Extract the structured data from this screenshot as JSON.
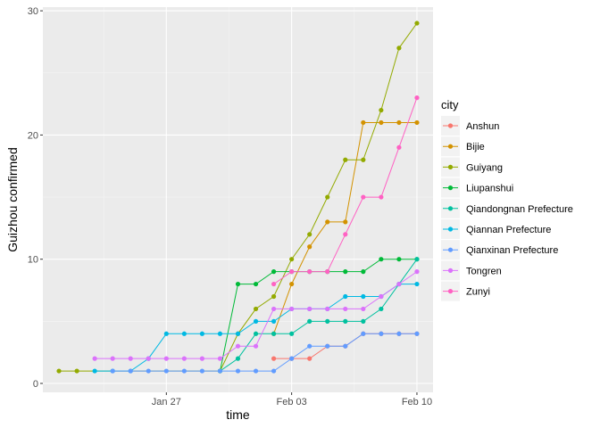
{
  "chart_data": {
    "type": "line",
    "xlabel": "time",
    "ylabel": "Guizhou  confirmed",
    "ylim": [
      0,
      30
    ],
    "yticks": [
      0,
      10,
      20,
      30
    ],
    "xticks": [
      {
        "day": 27,
        "label": "Jan 27"
      },
      {
        "day": 34,
        "label": "Feb 03"
      },
      {
        "day": 41,
        "label": "Feb 10"
      }
    ],
    "x_note_units": "day of year 2020 (Jan 1 = 1)",
    "grid": true,
    "legend_position": "right",
    "legend_title": "city",
    "series": [
      {
        "name": "Anshun",
        "color": "#F8766D",
        "days": [
          33,
          34,
          35,
          36,
          37,
          38,
          39,
          40,
          41
        ],
        "values": [
          2,
          2,
          2,
          3,
          3,
          4,
          4,
          4,
          4
        ]
      },
      {
        "name": "Bijie",
        "color": "#D39200",
        "days": [
          33,
          34,
          35,
          36,
          37,
          38,
          39,
          40,
          41
        ],
        "values": [
          4,
          8,
          11,
          13,
          13,
          21,
          21,
          21,
          21
        ]
      },
      {
        "name": "Guiyang",
        "color": "#93AA00",
        "days": [
          21,
          22,
          30,
          31,
          32,
          33,
          34,
          35,
          36,
          37,
          38,
          39,
          40,
          41
        ],
        "values": [
          1,
          1,
          1,
          4,
          6,
          7,
          10,
          12,
          15,
          18,
          18,
          22,
          27,
          29
        ]
      },
      {
        "name": "Liupanshui",
        "color": "#00BA38",
        "days": [
          30,
          31,
          32,
          33,
          34,
          35,
          36,
          37,
          38,
          39,
          40,
          41
        ],
        "values": [
          1,
          8,
          8,
          9,
          9,
          9,
          9,
          9,
          9,
          10,
          10,
          10
        ]
      },
      {
        "name": "Qiandongnan Prefecture",
        "color": "#00C19F",
        "days": [
          30,
          31,
          32,
          33,
          34,
          35,
          36,
          37,
          38,
          39,
          40,
          41
        ],
        "values": [
          1,
          2,
          4,
          4,
          4,
          5,
          5,
          5,
          5,
          6,
          8,
          10
        ]
      },
      {
        "name": "Qiannan Prefecture",
        "color": "#00B9E3",
        "days": [
          23,
          24,
          25,
          26,
          27,
          28,
          29,
          30,
          31,
          32,
          33,
          34,
          35,
          36,
          37,
          38,
          39,
          40,
          41
        ],
        "values": [
          1,
          1,
          1,
          2,
          4,
          4,
          4,
          4,
          4,
          5,
          5,
          6,
          6,
          6,
          7,
          7,
          7,
          8,
          8
        ]
      },
      {
        "name": "Qianxinan Prefecture",
        "color": "#619CFF",
        "days": [
          24,
          25,
          26,
          27,
          28,
          29,
          30,
          31,
          32,
          33,
          34,
          35,
          36,
          37,
          38,
          39,
          40,
          41
        ],
        "values": [
          1,
          1,
          1,
          1,
          1,
          1,
          1,
          1,
          1,
          1,
          2,
          3,
          3,
          3,
          4,
          4,
          4,
          4
        ]
      },
      {
        "name": "Tongren",
        "color": "#DB72FB",
        "days": [
          23,
          24,
          25,
          26,
          27,
          28,
          29,
          30,
          31,
          32,
          33,
          34,
          35,
          36,
          37,
          38,
          39,
          40,
          41
        ],
        "values": [
          2,
          2,
          2,
          2,
          2,
          2,
          2,
          2,
          3,
          3,
          6,
          6,
          6,
          6,
          6,
          6,
          7,
          8,
          9
        ]
      },
      {
        "name": "Zunyi",
        "color": "#FF61C3",
        "days": [
          33,
          34,
          35,
          36,
          37,
          38,
          39,
          40,
          41
        ],
        "values": [
          8,
          9,
          9,
          9,
          12,
          15,
          15,
          19,
          23
        ]
      }
    ]
  }
}
